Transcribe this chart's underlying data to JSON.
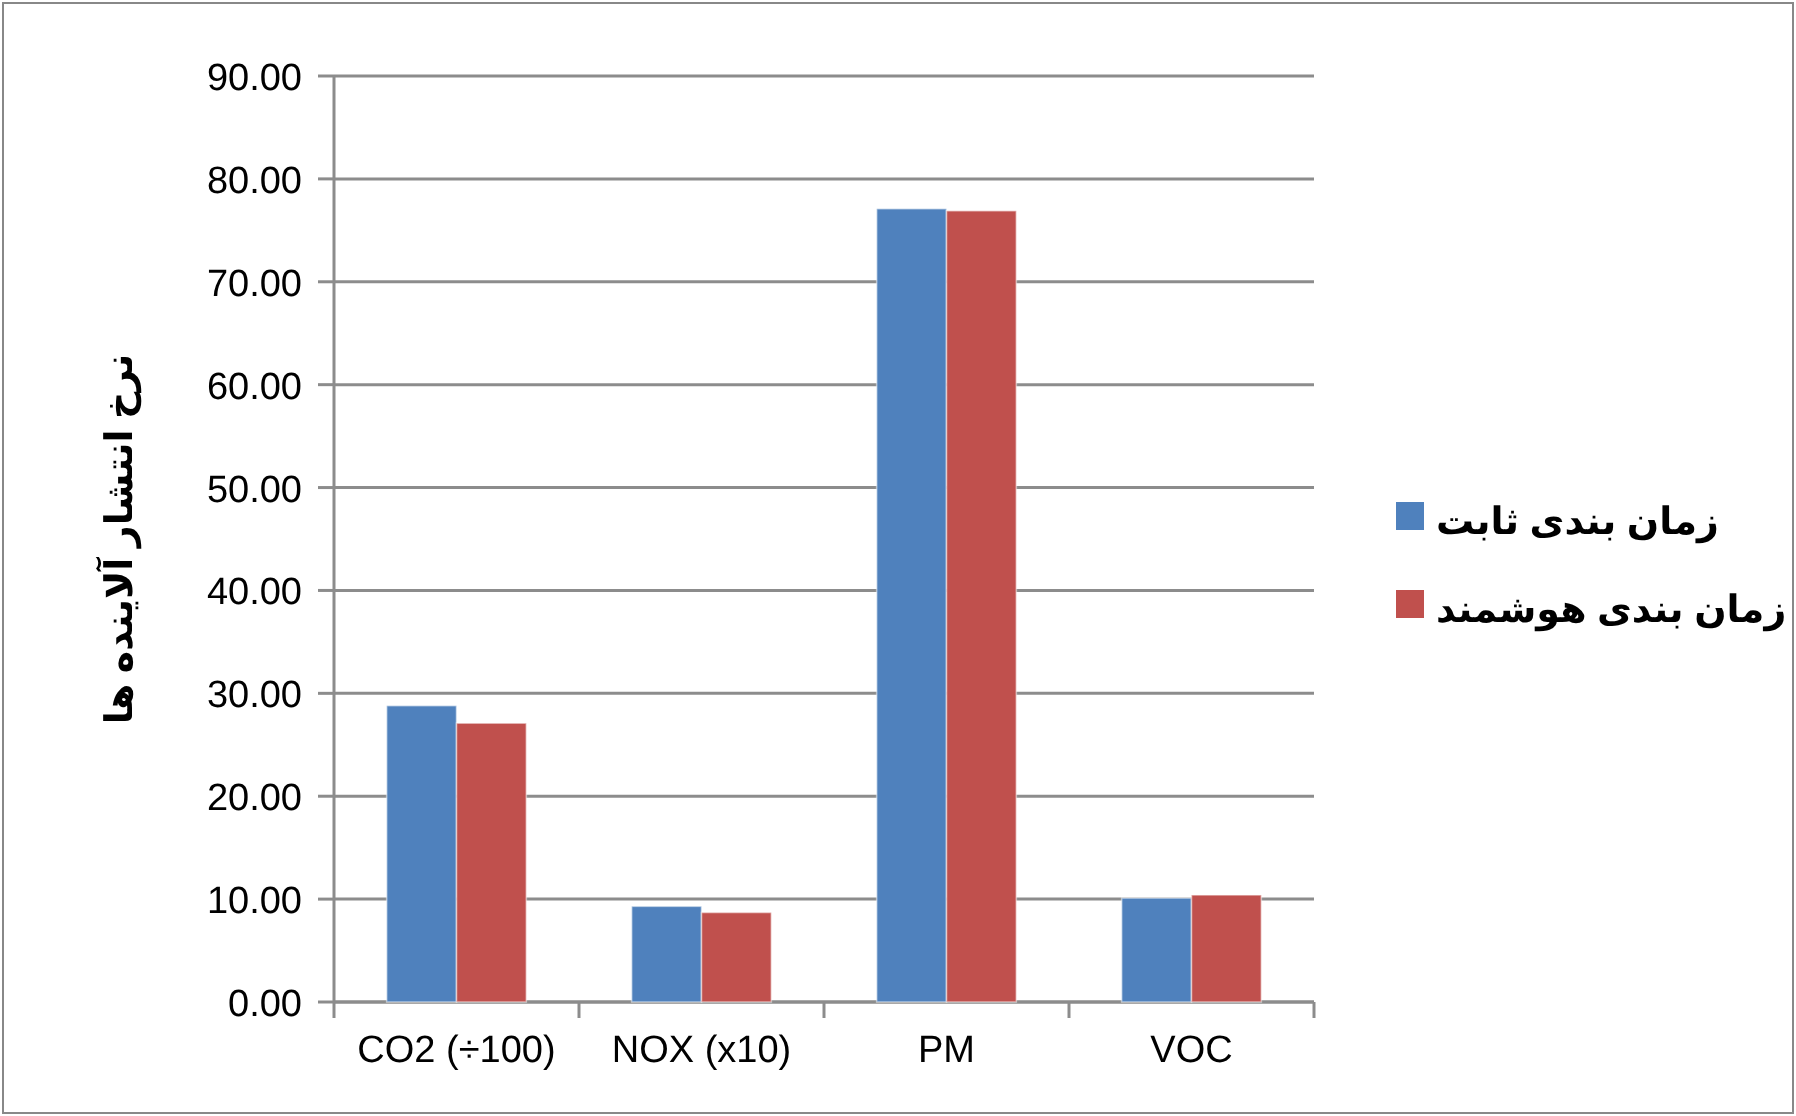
{
  "chart_data": {
    "type": "bar",
    "ylabel": "نرخ انتشار آلاینده ها",
    "categories": [
      "CO2 (÷100)",
      "NOX (x10)",
      "PM",
      "VOC"
    ],
    "series": [
      {
        "name": "زمان بندی ثابت",
        "color": "#4f81bd",
        "values": [
          28.8,
          9.3,
          77.1,
          10.1
        ]
      },
      {
        "name": "زمان بندی هوشمند",
        "color": "#c0504d",
        "values": [
          27.1,
          8.7,
          76.9,
          10.4
        ]
      }
    ],
    "ylim": [
      0,
      90
    ],
    "yticks": [
      {
        "value": 0,
        "label": "0.00"
      },
      {
        "value": 10,
        "label": "10.00"
      },
      {
        "value": 20,
        "label": "20.00"
      },
      {
        "value": 30,
        "label": "30.00"
      },
      {
        "value": 40,
        "label": "40.00"
      },
      {
        "value": 50,
        "label": "50.00"
      },
      {
        "value": 60,
        "label": "60.00"
      },
      {
        "value": 70,
        "label": "70.00"
      },
      {
        "value": 80,
        "label": "80.00"
      },
      {
        "value": 90,
        "label": "90.00"
      }
    ],
    "grid": "y",
    "legend": "right"
  }
}
